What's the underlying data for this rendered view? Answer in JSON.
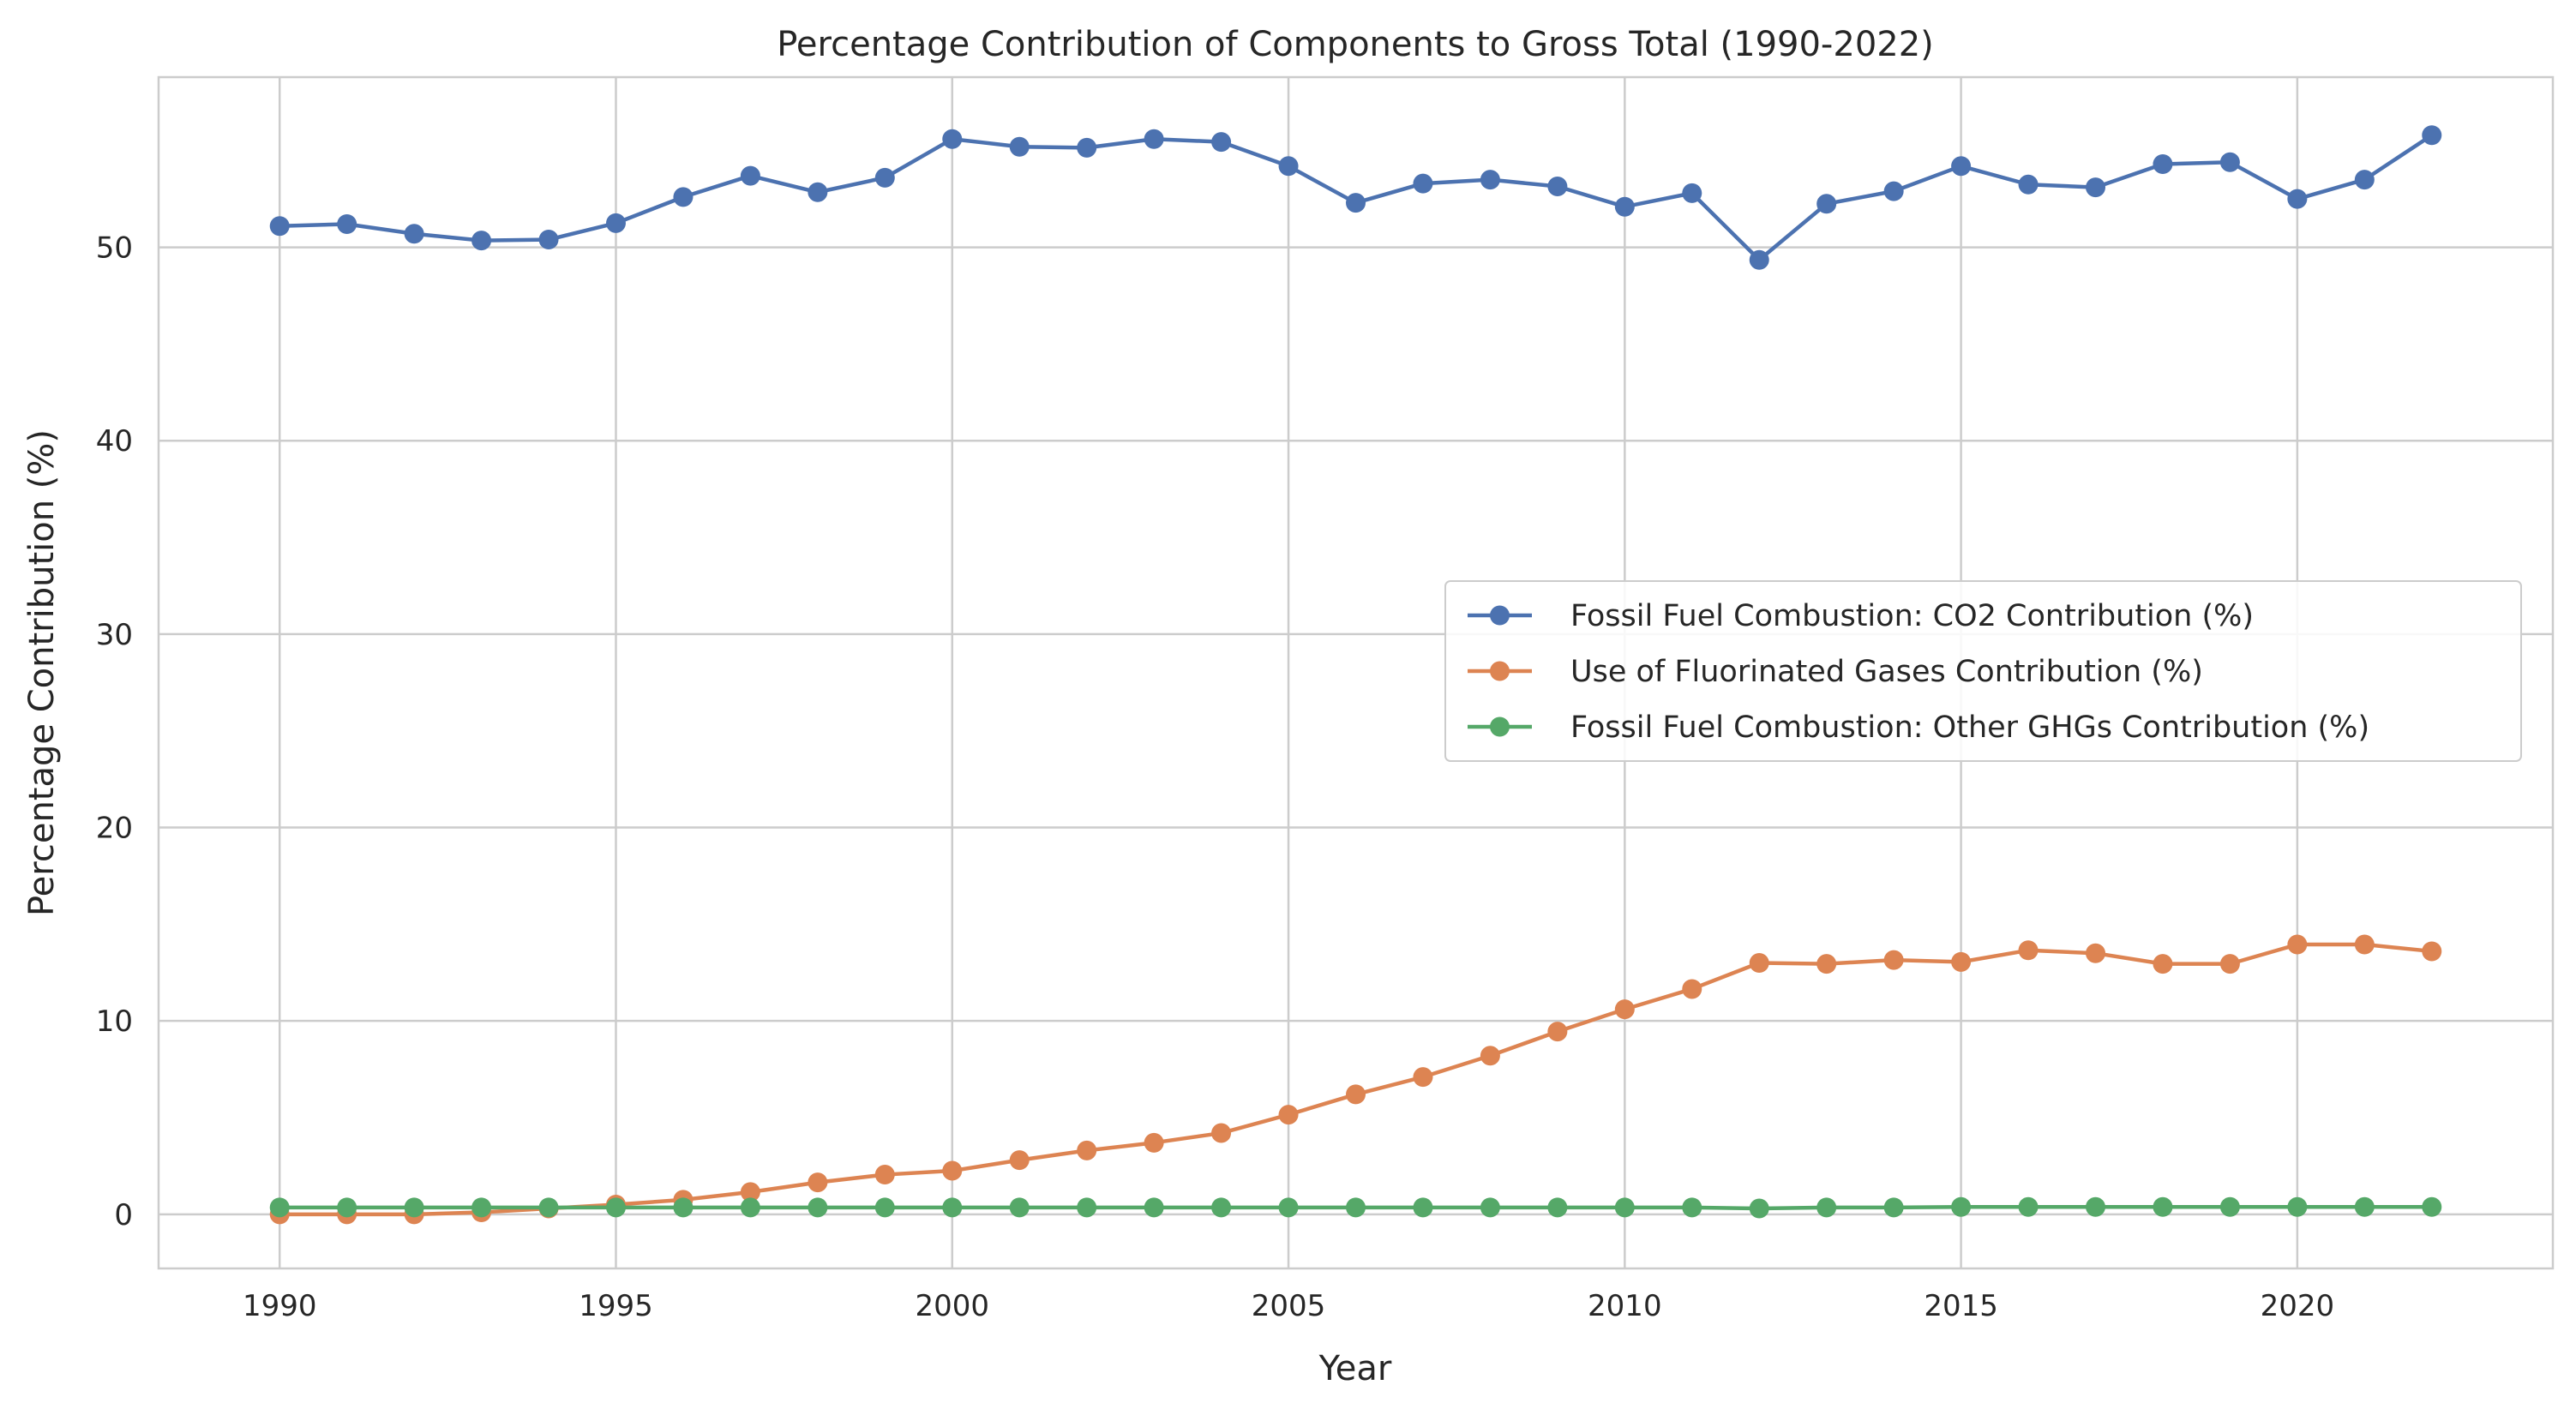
{
  "chart_data": {
    "type": "line",
    "title": "Percentage Contribution of Components to Gross Total (1990-2022)",
    "xlabel": "Year",
    "ylabel": "Percentage Contribution (%)",
    "xlim": [
      1988.2,
      2023.8
    ],
    "ylim": [
      -2.8,
      58.8
    ],
    "x_ticks": [
      1990,
      1995,
      2000,
      2005,
      2010,
      2015,
      2020
    ],
    "y_ticks": [
      0,
      10,
      20,
      30,
      40,
      50
    ],
    "grid": true,
    "legend_position": "center-right",
    "x": [
      1990,
      1991,
      1992,
      1993,
      1994,
      1995,
      1996,
      1997,
      1998,
      1999,
      2000,
      2001,
      2002,
      2003,
      2004,
      2005,
      2006,
      2007,
      2008,
      2009,
      2010,
      2011,
      2012,
      2013,
      2014,
      2015,
      2016,
      2017,
      2018,
      2019,
      2020,
      2021,
      2022
    ],
    "series": [
      {
        "name": "Fossil Fuel Combustion: CO2 Contribution (%)",
        "color": "#4c72b0",
        "values": [
          51.1,
          51.2,
          50.7,
          50.35,
          50.4,
          51.25,
          52.6,
          53.7,
          52.85,
          53.6,
          55.6,
          55.2,
          55.15,
          55.6,
          55.45,
          54.2,
          52.3,
          53.3,
          53.5,
          53.15,
          52.1,
          52.8,
          49.35,
          52.25,
          52.9,
          54.2,
          53.25,
          53.1,
          54.3,
          54.4,
          52.5,
          53.5,
          55.8
        ]
      },
      {
        "name": "Use of Fluorinated Gases Contribution (%)",
        "color": "#dd8452",
        "values": [
          0.0,
          0.0,
          0.0,
          0.1,
          0.3,
          0.5,
          0.75,
          1.15,
          1.65,
          2.05,
          2.25,
          2.8,
          3.3,
          3.7,
          4.2,
          5.15,
          6.2,
          7.1,
          8.2,
          9.45,
          10.6,
          11.65,
          13.0,
          12.95,
          13.15,
          13.05,
          13.65,
          13.5,
          12.95,
          12.95,
          13.95,
          13.95,
          13.6
        ]
      },
      {
        "name": "Fossil Fuel Combustion: Other GHGs Contribution (%)",
        "color": "#55a868",
        "values": [
          0.35,
          0.35,
          0.35,
          0.35,
          0.35,
          0.35,
          0.35,
          0.35,
          0.35,
          0.35,
          0.35,
          0.35,
          0.35,
          0.35,
          0.35,
          0.35,
          0.35,
          0.35,
          0.35,
          0.35,
          0.35,
          0.35,
          0.3,
          0.35,
          0.35,
          0.38,
          0.38,
          0.38,
          0.38,
          0.38,
          0.38,
          0.38,
          0.38
        ]
      }
    ]
  }
}
